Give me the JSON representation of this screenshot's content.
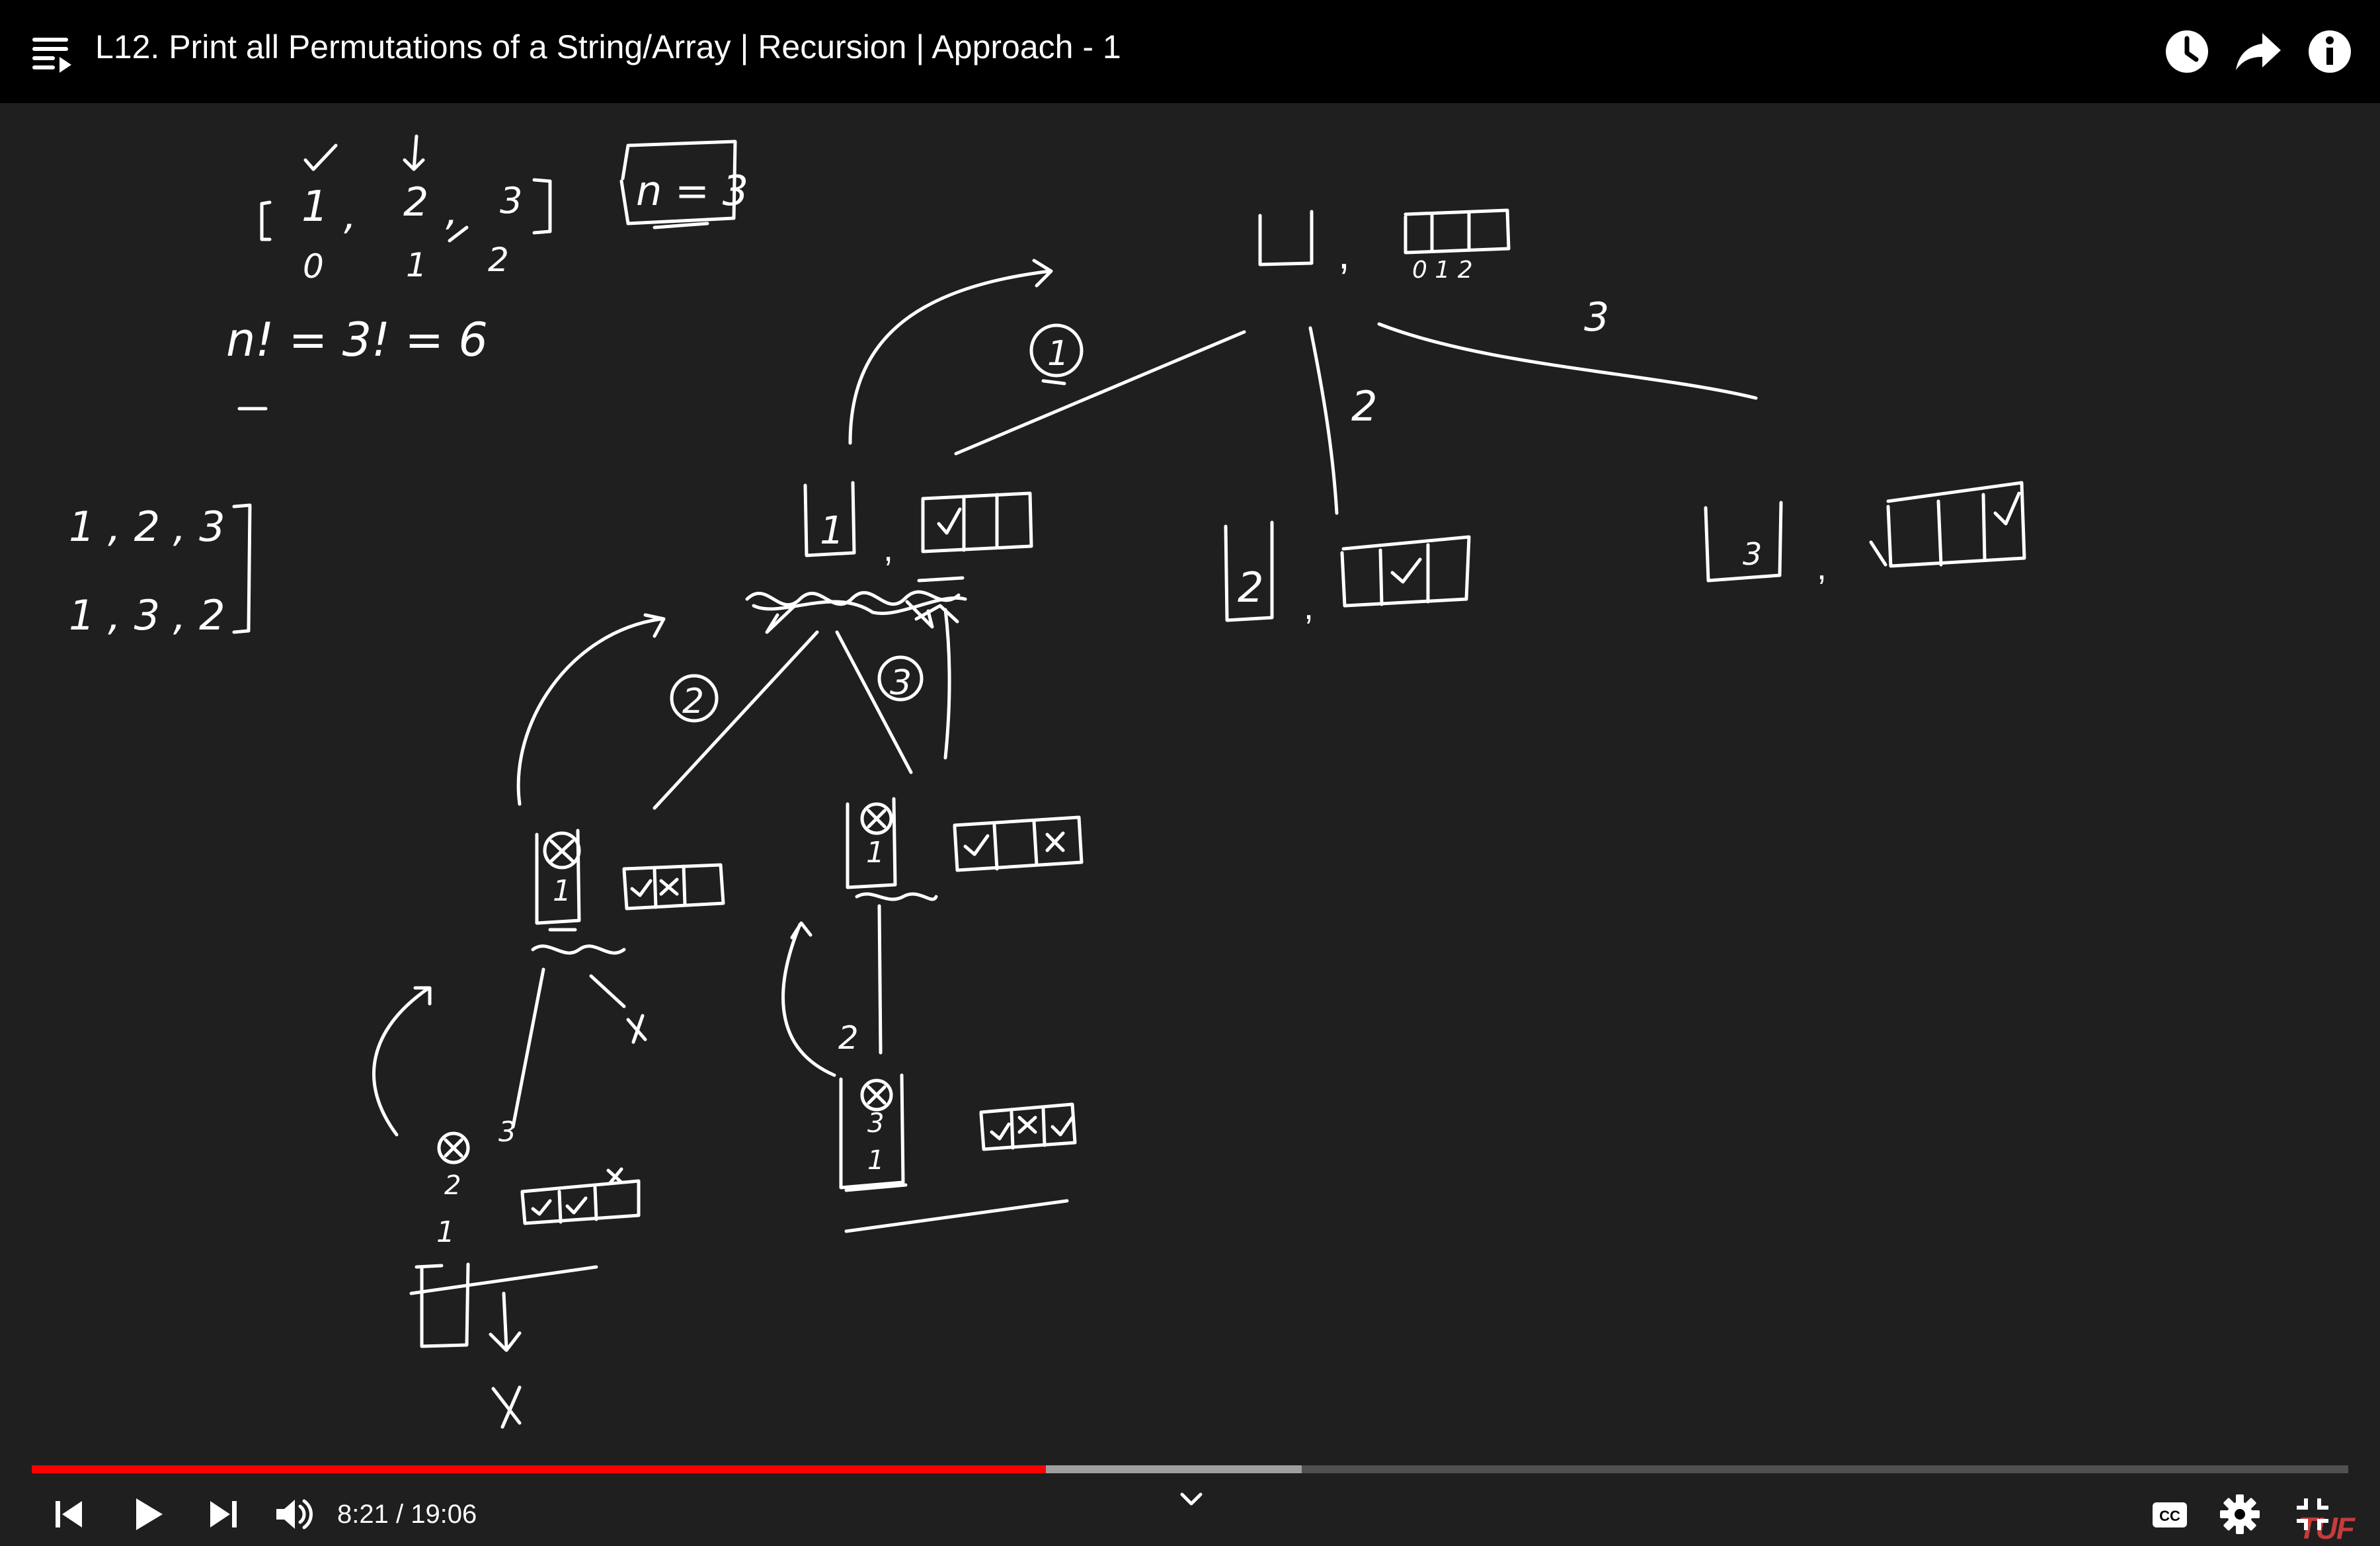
{
  "video": {
    "title": "L12. Print all Permutations of a String/Array | Recursion | Approach - 1",
    "current_time": "8:21",
    "duration": "19:06",
    "time_display": "8:21 / 19:06",
    "played_fraction": 0.4378,
    "buffered_fraction": 0.5482,
    "watermark": "TUF"
  },
  "colors": {
    "progress_played": "#ff0000",
    "board_background": "#1f1f1f",
    "ink": "#ffffff",
    "watermark": "#c63b3b"
  },
  "top_icons": [
    "playlist-icon",
    "watch-later-clock-icon",
    "share-arrow-icon",
    "info-icon"
  ],
  "control_icons": [
    "previous-icon",
    "play-icon",
    "next-icon",
    "volume-icon",
    "chevron-down-icon",
    "closed-captions-icon",
    "settings-gear-icon",
    "exit-fullscreen-icon"
  ],
  "board": {
    "array_values": [
      "1",
      "2",
      "3"
    ],
    "array_indices": [
      "0",
      "1",
      "2"
    ],
    "n_label": "n = 3",
    "factorial": "n! = 3! = 6",
    "perm_1": "1 , 2 , 3",
    "perm_2": "1 , 3 , 2",
    "branch_root_2": "2",
    "branch_root_3": "3",
    "circle_1": "1",
    "circle_2": "2",
    "circle_3": "3",
    "node_root_indices": "0 1 2",
    "stack_1": "1",
    "stack_2": "2",
    "stack_3": "3",
    "label_3": "3",
    "label_2": "2",
    "cross": "x",
    "check": "✓"
  }
}
